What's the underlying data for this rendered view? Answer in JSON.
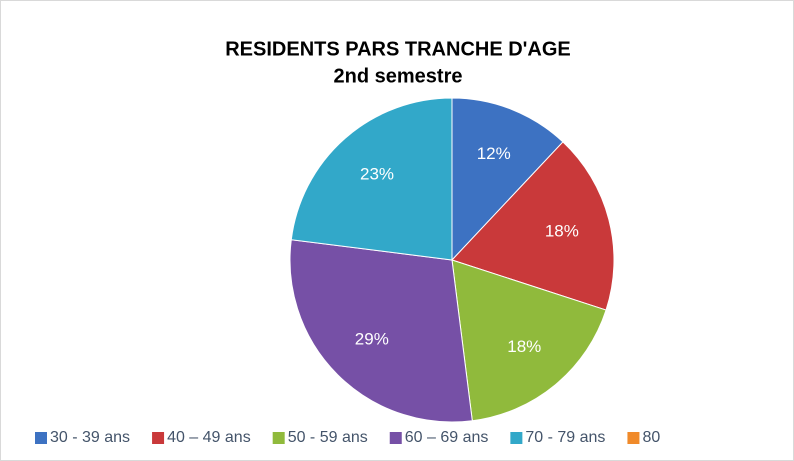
{
  "chart_data": {
    "type": "pie",
    "title": "RESIDENTS PARS TRANCHE D'AGE",
    "subtitle": "2nd semestre",
    "categories": [
      "30 - 39 ans",
      "40 – 49 ans",
      "50 - 59 ans",
      "60 – 69 ans",
      "70 - 79 ans",
      "80"
    ],
    "values": [
      12,
      18,
      18,
      29,
      23,
      0
    ],
    "value_labels": [
      "12%",
      "18%",
      "18%",
      "29%",
      "23%",
      null
    ],
    "colors": [
      "#3d72c2",
      "#c9393a",
      "#90ba3c",
      "#7650a6",
      "#32a8c9",
      "#f08a2a"
    ],
    "legend": "bottom"
  }
}
